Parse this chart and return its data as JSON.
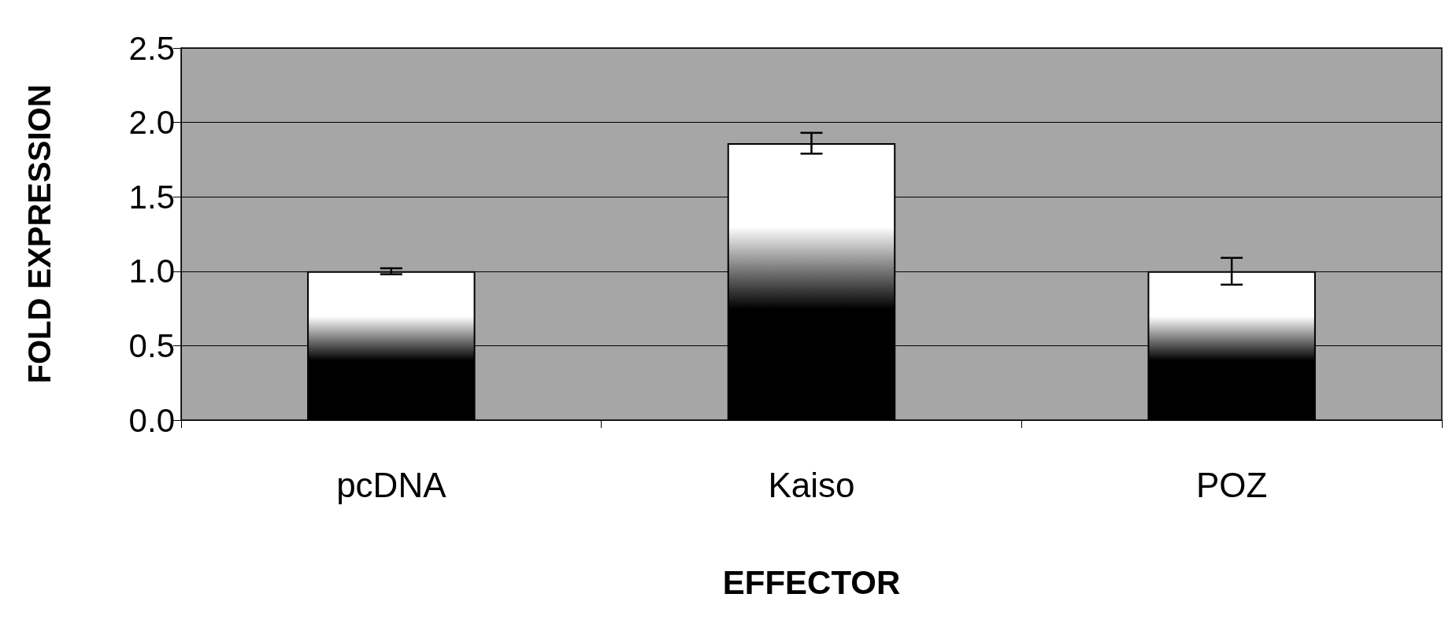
{
  "chart_data": {
    "type": "bar",
    "xlabel": "EFFECTOR",
    "ylabel": "FOLD EXPRESSION",
    "categories": [
      "pcDNA",
      "Kaiso",
      "POZ"
    ],
    "values": [
      1.0,
      1.86,
      1.0
    ],
    "errors": [
      0.02,
      0.07,
      0.09
    ],
    "color": "#000000",
    "ylim": [
      0,
      2.5
    ],
    "yticks": [
      {
        "value": 0,
        "label": "0.0"
      },
      {
        "value": 0.5,
        "label": "0.5"
      },
      {
        "value": 1,
        "label": "1.0"
      },
      {
        "value": 1.5,
        "label": "1.5"
      },
      {
        "value": 2,
        "label": "2.0"
      },
      {
        "value": 2.5,
        "label": "2.5"
      }
    ],
    "grid": "y"
  }
}
